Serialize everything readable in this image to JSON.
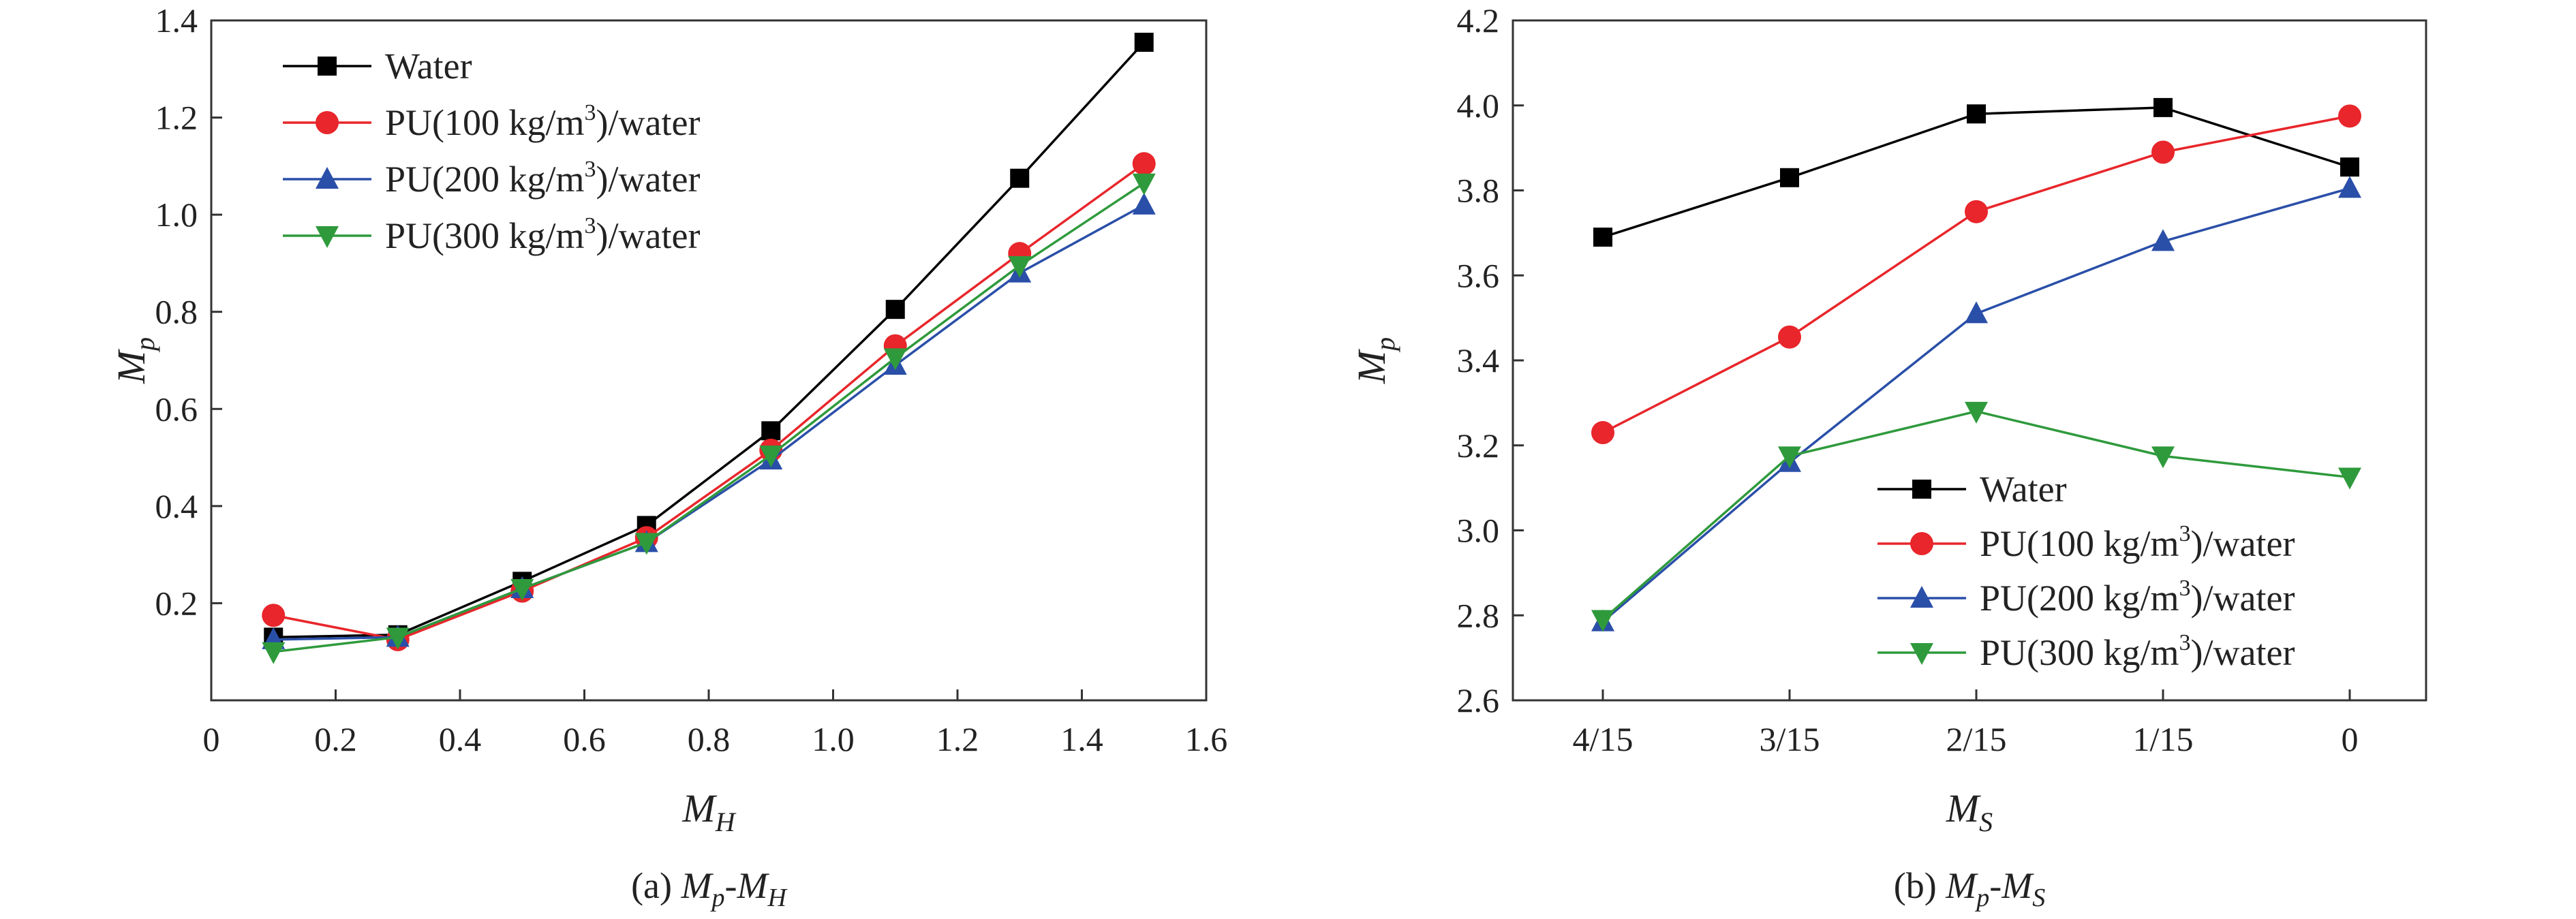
{
  "chart_data": [
    {
      "panel": "a",
      "type": "line",
      "caption": {
        "prefix": "(a) ",
        "text": "Mp-MH"
      },
      "xlabel": {
        "main": "M",
        "sub": "H"
      },
      "ylabel": {
        "main": "M",
        "sub": "p"
      },
      "xlim": [
        0,
        1.6
      ],
      "ylim": [
        0,
        1.4
      ],
      "xticks": [
        "0",
        "0.2",
        "0.4",
        "0.6",
        "0.8",
        "1.0",
        "1.2",
        "1.4",
        "1.6"
      ],
      "yticks": [
        "0.2",
        "0.4",
        "0.6",
        "0.8",
        "1.0",
        "1.2",
        "1.4"
      ],
      "legend_position": "top-left",
      "x": [
        0.1,
        0.3,
        0.5,
        0.7,
        0.9,
        1.1,
        1.3,
        1.5
      ],
      "series": [
        {
          "name": "Water",
          "marker": "square",
          "color": "#000000",
          "values": [
            0.13,
            0.135,
            0.245,
            0.36,
            0.555,
            0.805,
            1.075,
            1.355
          ]
        },
        {
          "name": "PU(100 kg/m3)/water",
          "marker": "circle",
          "color": "#e8262b",
          "values": [
            0.175,
            0.125,
            0.225,
            0.335,
            0.515,
            0.73,
            0.92,
            1.105
          ]
        },
        {
          "name": "PU(200 kg/m3)/water",
          "marker": "triangle-up",
          "color": "#2a4fa8",
          "values": [
            0.125,
            0.13,
            0.23,
            0.325,
            0.495,
            0.69,
            0.88,
            1.02
          ]
        },
        {
          "name": "PU(300 kg/m3)/water",
          "marker": "triangle-down",
          "color": "#2f9a3c",
          "values": [
            0.1,
            0.13,
            0.23,
            0.325,
            0.505,
            0.705,
            0.895,
            1.065
          ]
        }
      ]
    },
    {
      "panel": "b",
      "type": "line",
      "caption": {
        "prefix": "(b) ",
        "text": "Mp-MS"
      },
      "xlabel": {
        "main": "M",
        "sub": "S"
      },
      "ylabel": {
        "main": "M",
        "sub": "p"
      },
      "categories": [
        "4/15",
        "3/15",
        "2/15",
        "1/15",
        "0"
      ],
      "ylim": [
        2.6,
        4.2
      ],
      "yticks": [
        "2.6",
        "2.8",
        "3.0",
        "3.2",
        "3.4",
        "3.6",
        "3.8",
        "4.0",
        "4.2"
      ],
      "legend_position": "bottom-right",
      "series": [
        {
          "name": "Water",
          "marker": "square",
          "color": "#000000",
          "values": [
            3.69,
            3.83,
            3.98,
            3.995,
            3.855
          ]
        },
        {
          "name": "PU(100 kg/m3)/water",
          "marker": "circle",
          "color": "#e8262b",
          "values": [
            3.23,
            3.455,
            3.75,
            3.89,
            3.975
          ]
        },
        {
          "name": "PU(200 kg/m3)/water",
          "marker": "triangle-up",
          "color": "#2a4fa8",
          "values": [
            2.785,
            3.16,
            3.51,
            3.68,
            3.805
          ]
        },
        {
          "name": "PU(300 kg/m3)/water",
          "marker": "triangle-down",
          "color": "#2f9a3c",
          "values": [
            2.79,
            3.175,
            3.28,
            3.175,
            3.125
          ]
        }
      ]
    }
  ]
}
